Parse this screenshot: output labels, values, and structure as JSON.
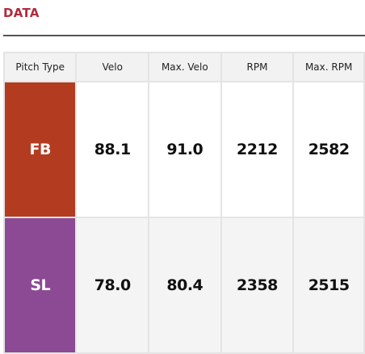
{
  "section": {
    "title": "DATA"
  },
  "table": {
    "headers": [
      "Pitch Type",
      "Velo",
      "Max. Velo",
      "RPM",
      "Max. RPM"
    ],
    "rows": [
      {
        "pitch": "FB",
        "color": "#b33c20",
        "values": [
          "88.1",
          "91.0",
          "2212",
          "2582"
        ]
      },
      {
        "pitch": "SL",
        "color": "#8b4a93",
        "values": [
          "78.0",
          "80.4",
          "2358",
          "2515"
        ]
      }
    ]
  }
}
